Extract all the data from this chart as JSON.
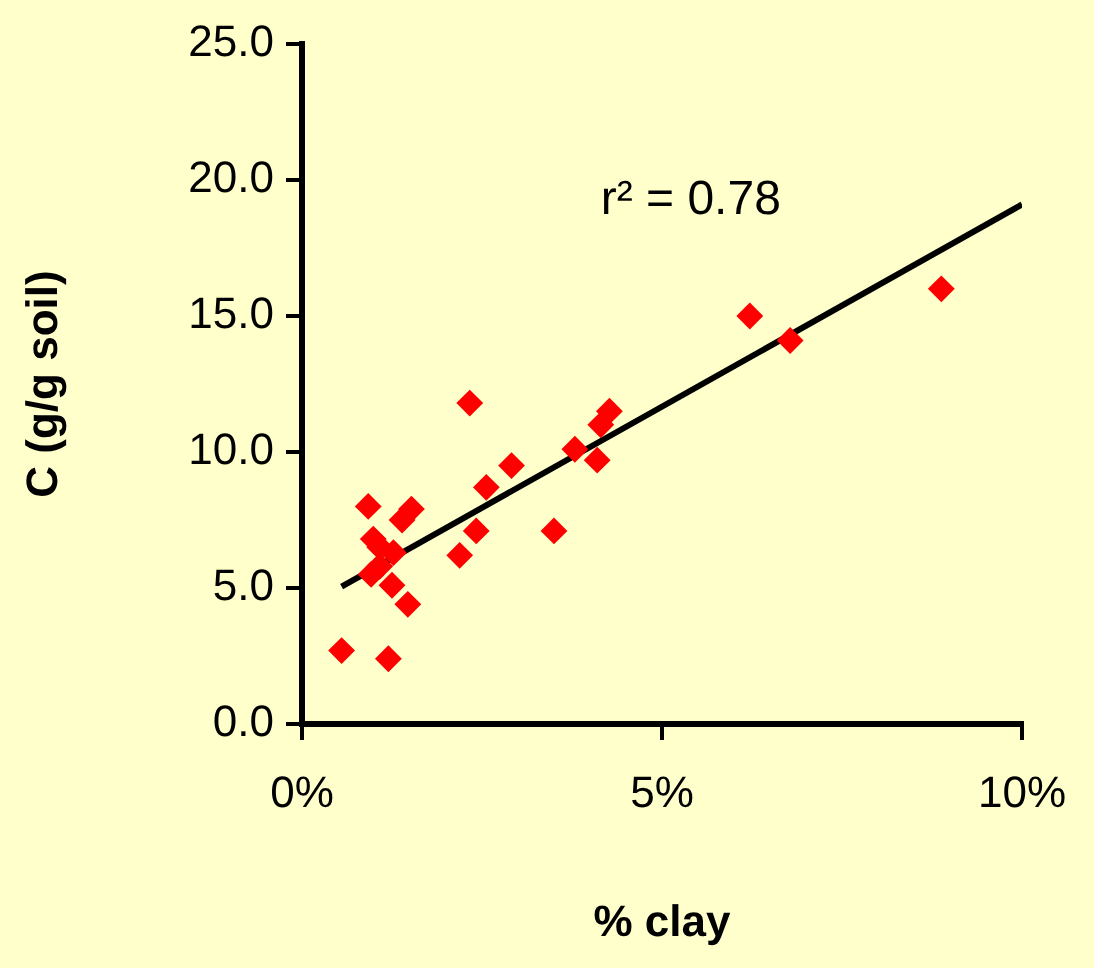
{
  "chart_data": {
    "type": "scatter",
    "xlabel": "% clay",
    "ylabel": "C (g/g soil)",
    "annotations": [
      "r² = 0.78"
    ],
    "xlim": [
      0,
      10
    ],
    "xticks": [
      {
        "value": 0,
        "label": "0%"
      },
      {
        "value": 5,
        "label": "5%"
      },
      {
        "value": 10,
        "label": "10%"
      }
    ],
    "ylim": [
      0,
      25
    ],
    "yticks": [
      {
        "value": 0,
        "label": "0.0"
      },
      {
        "value": 5,
        "label": "5.0"
      },
      {
        "value": 10,
        "label": "10.0"
      },
      {
        "value": 15,
        "label": "15.0"
      },
      {
        "value": 20,
        "label": "20.0"
      },
      {
        "value": 25,
        "label": "25.0"
      }
    ],
    "grid": false,
    "legend": false,
    "series": [
      {
        "color": "#ff0000",
        "marker": "diamond",
        "x": [
          0.55,
          1.2,
          0.92,
          0.99,
          1.08,
          0.96,
          1.08,
          1.27,
          1.25,
          1.47,
          1.39,
          1.52,
          2.19,
          2.33,
          2.42,
          2.56,
          2.91,
          3.5,
          3.79,
          4.1,
          4.15,
          4.27,
          6.22,
          6.78,
          8.88
        ],
        "values": [
          2.7,
          2.4,
          8.0,
          6.8,
          6.5,
          5.5,
          5.8,
          6.3,
          5.1,
          4.4,
          7.5,
          7.9,
          6.2,
          11.8,
          7.1,
          8.7,
          9.5,
          7.1,
          10.1,
          9.7,
          11.0,
          11.5,
          15.0,
          14.1,
          16.0
        ]
      },
      {
        "type": "line",
        "color": "#000000",
        "marker": "none",
        "x": [
          0.55,
          10
        ],
        "values": [
          5.05,
          19.1
        ]
      }
    ]
  }
}
